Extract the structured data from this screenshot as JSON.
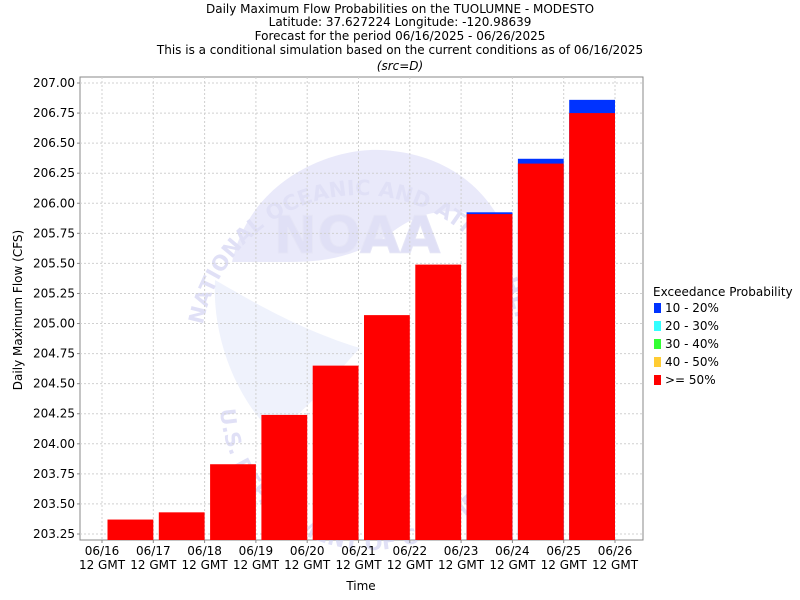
{
  "chart_data": {
    "type": "bar",
    "title_lines": [
      "Daily Maximum Flow Probabilities on the TUOLUMNE - MODESTO",
      "Latitude: 37.627224 Longitude: -120.98639",
      "Forecast for the period 06/16/2025 - 06/26/2025",
      "This is a conditional simulation based on the current conditions as of 06/16/2025"
    ],
    "source_note": "(src=D)",
    "xlabel": "Time",
    "ylabel": "Daily Maximum Flow (CFS)",
    "ylim": [
      203.2,
      207.05
    ],
    "yticks": [
      "203.25",
      "203.50",
      "203.75",
      "204.00",
      "204.25",
      "204.50",
      "204.75",
      "205.00",
      "205.25",
      "205.50",
      "205.75",
      "206.00",
      "206.25",
      "206.50",
      "206.75",
      "207.00"
    ],
    "xticks": [
      {
        "date": "06/16",
        "time": "12 GMT"
      },
      {
        "date": "06/17",
        "time": "12 GMT"
      },
      {
        "date": "06/18",
        "time": "12 GMT"
      },
      {
        "date": "06/19",
        "time": "12 GMT"
      },
      {
        "date": "06/20",
        "time": "12 GMT"
      },
      {
        "date": "06/21",
        "time": "12 GMT"
      },
      {
        "date": "06/22",
        "time": "12 GMT"
      },
      {
        "date": "06/23",
        "time": "12 GMT"
      },
      {
        "date": "06/24",
        "time": "12 GMT"
      },
      {
        "date": "06/25",
        "time": "12 GMT"
      },
      {
        "date": "06/26",
        "time": "12 GMT"
      }
    ],
    "bars": [
      {
        "start": "06/16 12 GMT",
        "end": "06/17 12 GMT",
        "ge50": 203.37,
        "p10_20": 203.37
      },
      {
        "start": "06/17 12 GMT",
        "end": "06/18 12 GMT",
        "ge50": 203.43,
        "p10_20": 203.43
      },
      {
        "start": "06/18 12 GMT",
        "end": "06/19 12 GMT",
        "ge50": 203.83,
        "p10_20": 203.83
      },
      {
        "start": "06/19 12 GMT",
        "end": "06/20 12 GMT",
        "ge50": 204.24,
        "p10_20": 204.24
      },
      {
        "start": "06/20 12 GMT",
        "end": "06/21 12 GMT",
        "ge50": 204.65,
        "p10_20": 204.65
      },
      {
        "start": "06/21 12 GMT",
        "end": "06/22 12 GMT",
        "ge50": 205.07,
        "p10_20": 205.07
      },
      {
        "start": "06/22 12 GMT",
        "end": "06/23 12 GMT",
        "ge50": 205.49,
        "p10_20": 205.49
      },
      {
        "start": "06/23 12 GMT",
        "end": "06/24 12 GMT",
        "ge50": 205.91,
        "p10_20": 205.925
      },
      {
        "start": "06/24 12 GMT",
        "end": "06/25 12 GMT",
        "ge50": 206.33,
        "p10_20": 206.37
      },
      {
        "start": "06/25 12 GMT",
        "end": "06/26 12 GMT",
        "ge50": 206.75,
        "p10_20": 206.86
      }
    ],
    "legend": {
      "title": "Exceedance Probability",
      "placement": "right",
      "items": [
        {
          "label": "10 - 20%",
          "color": "#0033ff"
        },
        {
          "label": "20 - 30%",
          "color": "#33ffff"
        },
        {
          "label": "30 - 40%",
          "color": "#33ff33"
        },
        {
          "label": "40 - 50%",
          "color": "#ffcc33"
        },
        {
          "label": ">= 50%",
          "color": "#ff0000"
        }
      ]
    },
    "grid": true,
    "watermark": {
      "logo": "NOAA",
      "ring_text": "NATIONAL OCEANIC AND ATMOSPHERIC ADMINISTRATION",
      "bottom_text": "U.S. DEPARTMENT OF COMMERCE"
    }
  }
}
